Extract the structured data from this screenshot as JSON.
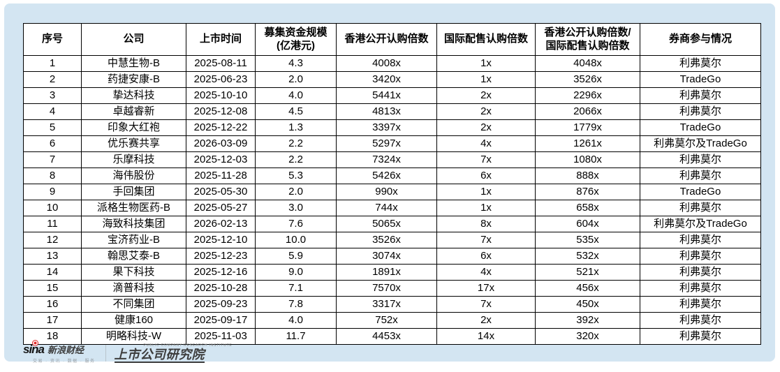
{
  "colors": {
    "panel_bg": "#d3e5f2",
    "table_bg": "#ffffff",
    "border": "#000000",
    "sina_red": "#e12d2d"
  },
  "table": {
    "headers": [
      "序号",
      "公司",
      "上市时间",
      "募集资金规模\n(亿港元)",
      "香港公开认购倍数",
      "国际配售认购倍数",
      "香港公开认购倍数/\n国际配售认购倍数",
      "券商参与情况"
    ],
    "rows": [
      [
        "1",
        "中慧生物-B",
        "2025-08-11",
        "4.3",
        "4008x",
        "1x",
        "4048x",
        "利弗莫尔"
      ],
      [
        "2",
        "药捷安康-B",
        "2025-06-23",
        "2.0",
        "3420x",
        "1x",
        "3526x",
        "TradeGo"
      ],
      [
        "3",
        "挚达科技",
        "2025-10-10",
        "4.0",
        "5441x",
        "2x",
        "2296x",
        "利弗莫尔"
      ],
      [
        "4",
        "卓越睿新",
        "2025-12-08",
        "4.5",
        "4813x",
        "2x",
        "2066x",
        "利弗莫尔"
      ],
      [
        "5",
        "印象大红袍",
        "2025-12-22",
        "1.3",
        "3397x",
        "2x",
        "1779x",
        "TradeGo"
      ],
      [
        "6",
        "优乐赛共享",
        "2026-03-09",
        "2.2",
        "5297x",
        "4x",
        "1261x",
        "利弗莫尔及TradeGo"
      ],
      [
        "7",
        "乐摩科技",
        "2025-12-03",
        "2.2",
        "7324x",
        "7x",
        "1080x",
        "利弗莫尔"
      ],
      [
        "8",
        "海伟股份",
        "2025-11-28",
        "5.3",
        "5426x",
        "6x",
        "888x",
        "利弗莫尔"
      ],
      [
        "9",
        "手回集团",
        "2025-05-30",
        "2.0",
        "990x",
        "1x",
        "876x",
        "TradeGo"
      ],
      [
        "10",
        "派格生物医药-B",
        "2025-05-27",
        "3.0",
        "744x",
        "1x",
        "658x",
        "利弗莫尔"
      ],
      [
        "11",
        "海致科技集团",
        "2026-02-13",
        "7.6",
        "5065x",
        "8x",
        "604x",
        "利弗莫尔及TradeGo"
      ],
      [
        "12",
        "宝济药业-B",
        "2025-12-10",
        "10.0",
        "3526x",
        "7x",
        "535x",
        "利弗莫尔"
      ],
      [
        "13",
        "翰思艾泰-B",
        "2025-12-23",
        "5.9",
        "3074x",
        "6x",
        "532x",
        "利弗莫尔"
      ],
      [
        "14",
        "果下科技",
        "2025-12-16",
        "9.0",
        "1891x",
        "4x",
        "521x",
        "利弗莫尔"
      ],
      [
        "15",
        "滴普科技",
        "2025-10-28",
        "7.1",
        "7570x",
        "17x",
        "456x",
        "利弗莫尔"
      ],
      [
        "16",
        "不同集团",
        "2025-09-23",
        "7.8",
        "3317x",
        "7x",
        "450x",
        "利弗莫尔"
      ],
      [
        "17",
        "健康160",
        "2025-09-17",
        "4.0",
        "752x",
        "2x",
        "392x",
        "利弗莫尔"
      ],
      [
        "18",
        "明略科技-W",
        "2025-11-03",
        "11.7",
        "4453x",
        "14x",
        "320x",
        "利弗莫尔"
      ]
    ]
  },
  "footer": {
    "sina_logo_text": "sina",
    "sina_brand": "新浪财经",
    "sina_tagline": "交易 · 资讯 · 数据 · 服务",
    "institute_en": "PUBLIC COMPANY RESEARCH INSTITUTE",
    "institute_name": "上市公司研究院"
  }
}
